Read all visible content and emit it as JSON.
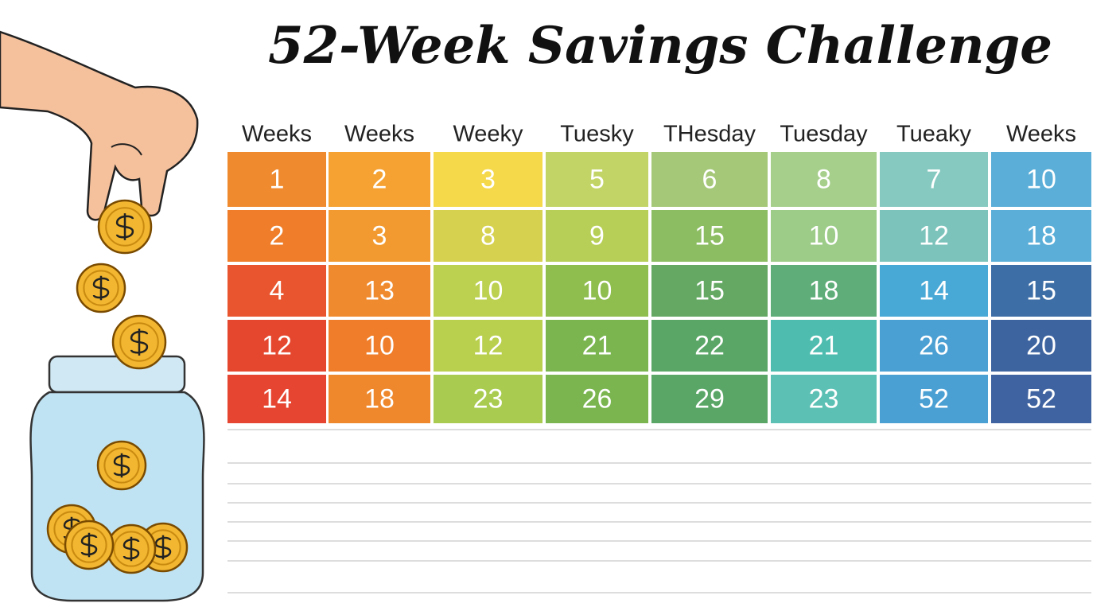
{
  "title": "52-Week Savings Challenge",
  "table": {
    "headers": [
      "Weeks",
      "Weeks",
      "Weeky",
      "Tuesky",
      "THesday",
      "Tuesday",
      "Tueaky",
      "Weeks"
    ],
    "rows": [
      [
        1,
        2,
        3,
        5,
        6,
        8,
        7,
        10
      ],
      [
        2,
        3,
        8,
        9,
        15,
        10,
        12,
        18
      ],
      [
        4,
        13,
        10,
        10,
        15,
        18,
        14,
        15
      ],
      [
        12,
        10,
        12,
        21,
        22,
        21,
        26,
        20
      ],
      [
        14,
        18,
        23,
        26,
        29,
        23,
        52,
        52
      ]
    ]
  }
}
